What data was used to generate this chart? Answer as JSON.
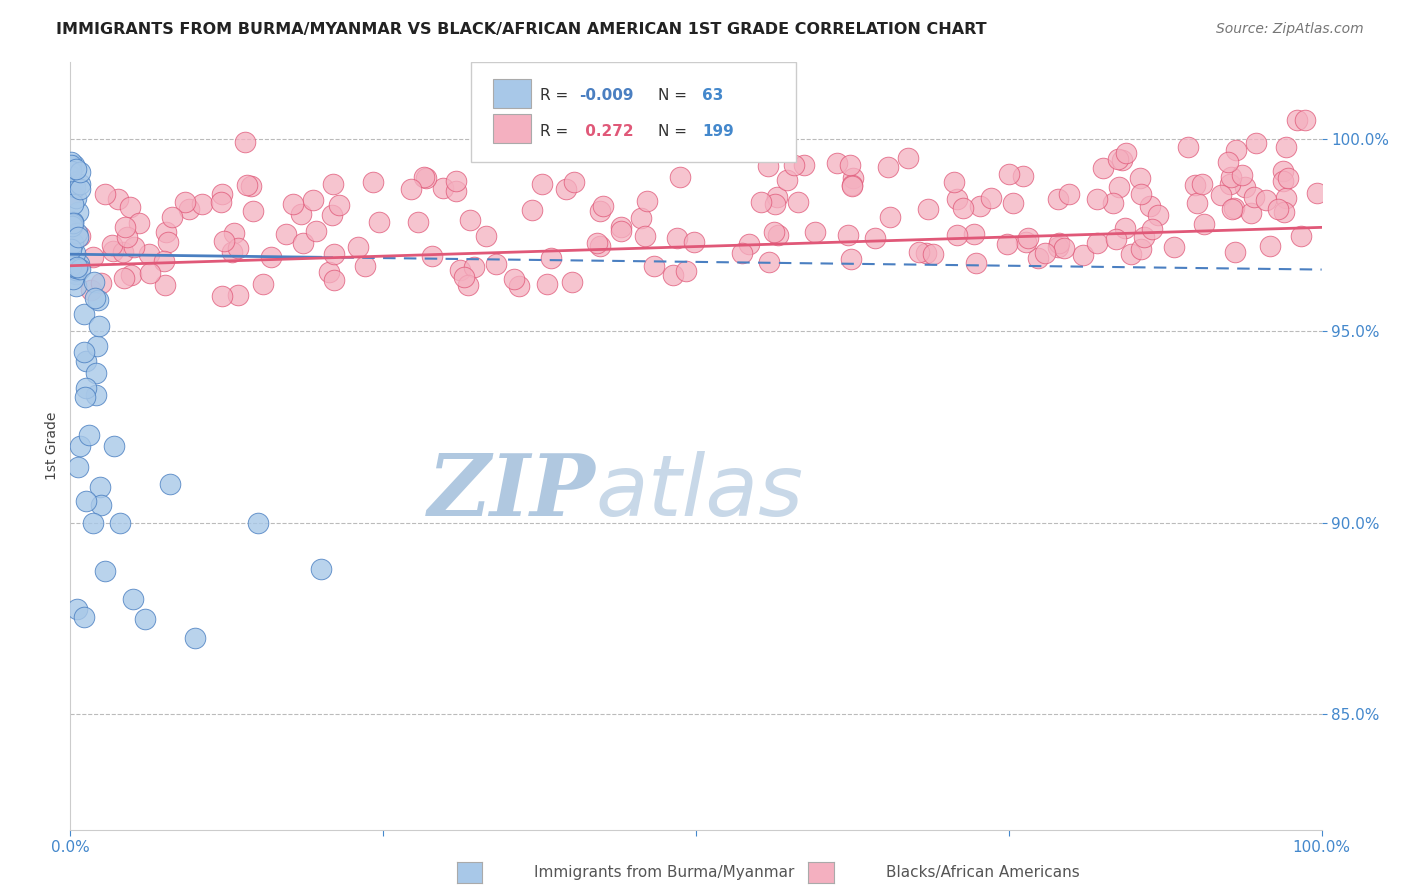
{
  "title": "IMMIGRANTS FROM BURMA/MYANMAR VS BLACK/AFRICAN AMERICAN 1ST GRADE CORRELATION CHART",
  "source": "Source: ZipAtlas.com",
  "ylabel": "1st Grade",
  "xlim": [
    0.0,
    1.0
  ],
  "ylim": [
    0.82,
    1.02
  ],
  "yticks": [
    0.85,
    0.9,
    0.95,
    1.0
  ],
  "ytick_labels": [
    "85.0%",
    "90.0%",
    "95.0%",
    "100.0%"
  ],
  "blue_R": "-0.009",
  "blue_N": "63",
  "pink_R": "0.272",
  "pink_N": "199",
  "blue_color": "#a8c8e8",
  "pink_color": "#f4b0c0",
  "blue_line_color": "#4a7fc1",
  "pink_line_color": "#e05878",
  "title_color": "#222222",
  "source_color": "#777777",
  "axis_label_color": "#4488cc",
  "legend_label1": "Immigrants from Burma/Myanmar",
  "legend_label2": "Blacks/African Americans",
  "watermark_zip": "ZIP",
  "watermark_atlas": "atlas",
  "watermark_color_zip": "#b0c8e0",
  "watermark_color_atlas": "#c8d8e8"
}
